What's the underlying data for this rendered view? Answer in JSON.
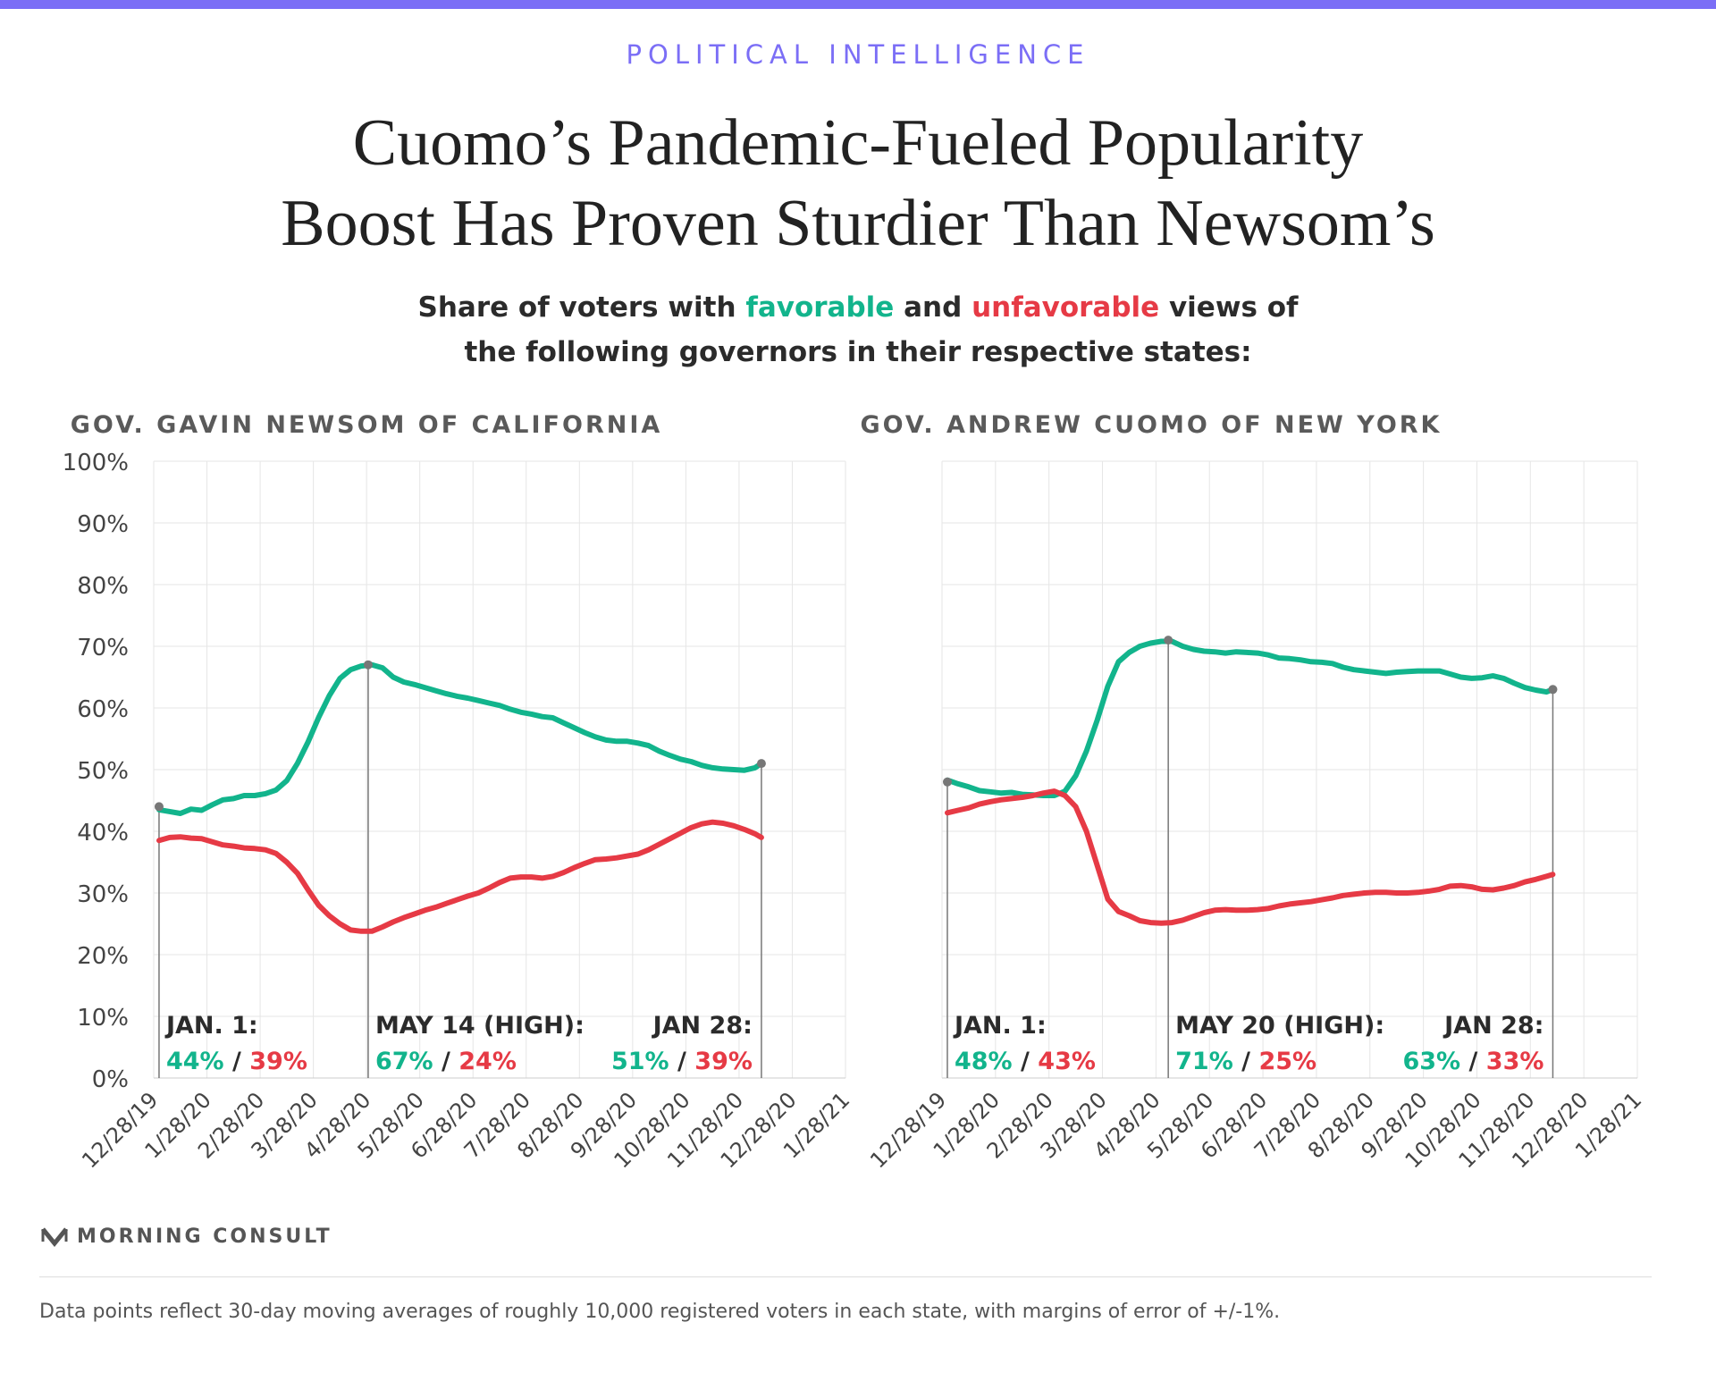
{
  "header": {
    "kicker": "POLITICAL INTELLIGENCE",
    "title_line1": "Cuomo’s Pandemic-Fueled Popularity",
    "title_line2": "Boost Has Proven Sturdier Than Newsom’s",
    "subtitle": {
      "part1": "Share of voters with ",
      "favorable": "favorable",
      "part2": " and ",
      "unfavorable": "unfavorable",
      "part3": " views of",
      "line2": "the following governors in their respective states:"
    }
  },
  "colors": {
    "favorable": "#12b48c",
    "unfavorable": "#e63a45",
    "accent": "#7b6ef6",
    "grid": "#e6e6e6",
    "marker": "#777777"
  },
  "footer": {
    "logo_text": "MORNING CONSULT",
    "logo_icon": "morning-consult-m-icon",
    "footnote": "Data points reflect 30-day moving averages of roughly 10,000 registered voters in each state, with margins of error of +/-1%."
  },
  "chart_data": [
    {
      "type": "line",
      "title": "GOV. GAVIN NEWSOM OF CALIFORNIA",
      "ylim": [
        0,
        100
      ],
      "y_ticks": [
        "0%",
        "10%",
        "20%",
        "30%",
        "40%",
        "50%",
        "60%",
        "70%",
        "80%",
        "90%",
        "100%"
      ],
      "x_tick_labels": [
        "12/28/19",
        "1/28/20",
        "2/28/20",
        "3/28/20",
        "4/28/20",
        "5/28/20",
        "6/28/20",
        "7/28/20",
        "8/28/20",
        "9/28/20",
        "10/28/20",
        "11/28/20",
        "12/28/20",
        "1/28/21"
      ],
      "x_month_range": [
        0,
        13
      ],
      "grid": true,
      "series": [
        {
          "name": "favorable",
          "color": "#12b48c",
          "points": [
            [
              0.1,
              43.5
            ],
            [
              0.3,
              43.2
            ],
            [
              0.5,
              42.9
            ],
            [
              0.7,
              43.6
            ],
            [
              0.9,
              43.4
            ],
            [
              1.1,
              44.3
            ],
            [
              1.3,
              45.1
            ],
            [
              1.5,
              45.3
            ],
            [
              1.7,
              45.8
            ],
            [
              1.9,
              45.8
            ],
            [
              2.1,
              46.1
            ],
            [
              2.3,
              46.7
            ],
            [
              2.5,
              48.2
            ],
            [
              2.7,
              51
            ],
            [
              2.9,
              54.5
            ],
            [
              3.1,
              58.5
            ],
            [
              3.3,
              62
            ],
            [
              3.5,
              64.8
            ],
            [
              3.7,
              66.2
            ],
            [
              3.9,
              66.8
            ],
            [
              4.1,
              67
            ],
            [
              4.3,
              66.5
            ],
            [
              4.5,
              65
            ],
            [
              4.7,
              64.2
            ],
            [
              4.9,
              63.8
            ],
            [
              5.1,
              63.3
            ],
            [
              5.3,
              62.8
            ],
            [
              5.5,
              62.3
            ],
            [
              5.7,
              61.9
            ],
            [
              5.9,
              61.6
            ],
            [
              6.1,
              61.2
            ],
            [
              6.3,
              60.8
            ],
            [
              6.5,
              60.4
            ],
            [
              6.7,
              59.8
            ],
            [
              6.9,
              59.3
            ],
            [
              7.1,
              59
            ],
            [
              7.3,
              58.6
            ],
            [
              7.5,
              58.4
            ],
            [
              7.7,
              57.6
            ],
            [
              7.9,
              56.8
            ],
            [
              8.1,
              56
            ],
            [
              8.3,
              55.3
            ],
            [
              8.5,
              54.8
            ],
            [
              8.7,
              54.6
            ],
            [
              8.9,
              54.6
            ],
            [
              9.1,
              54.3
            ],
            [
              9.3,
              53.9
            ],
            [
              9.5,
              53
            ],
            [
              9.7,
              52.3
            ],
            [
              9.9,
              51.7
            ],
            [
              10.1,
              51.3
            ],
            [
              10.3,
              50.7
            ],
            [
              10.5,
              50.3
            ],
            [
              10.7,
              50.1
            ],
            [
              10.9,
              50
            ],
            [
              11.1,
              49.9
            ],
            [
              11.3,
              50.3
            ],
            [
              11.42,
              51
            ]
          ]
        },
        {
          "name": "unfavorable",
          "color": "#e63a45",
          "points": [
            [
              0.1,
              38.5
            ],
            [
              0.3,
              39
            ],
            [
              0.5,
              39.1
            ],
            [
              0.7,
              38.9
            ],
            [
              0.9,
              38.8
            ],
            [
              1.1,
              38.3
            ],
            [
              1.3,
              37.8
            ],
            [
              1.5,
              37.6
            ],
            [
              1.7,
              37.3
            ],
            [
              1.9,
              37.2
            ],
            [
              2.1,
              37
            ],
            [
              2.3,
              36.4
            ],
            [
              2.5,
              35
            ],
            [
              2.7,
              33.2
            ],
            [
              2.9,
              30.5
            ],
            [
              3.1,
              28
            ],
            [
              3.3,
              26.3
            ],
            [
              3.5,
              25
            ],
            [
              3.7,
              24
            ],
            [
              3.9,
              23.8
            ],
            [
              4.1,
              23.8
            ],
            [
              4.3,
              24.5
            ],
            [
              4.5,
              25.3
            ],
            [
              4.7,
              26
            ],
            [
              4.9,
              26.6
            ],
            [
              5.1,
              27.2
            ],
            [
              5.3,
              27.7
            ],
            [
              5.5,
              28.3
            ],
            [
              5.7,
              28.9
            ],
            [
              5.9,
              29.5
            ],
            [
              6.1,
              30
            ],
            [
              6.3,
              30.8
            ],
            [
              6.5,
              31.7
            ],
            [
              6.7,
              32.4
            ],
            [
              6.9,
              32.6
            ],
            [
              7.1,
              32.6
            ],
            [
              7.3,
              32.4
            ],
            [
              7.5,
              32.7
            ],
            [
              7.7,
              33.3
            ],
            [
              7.9,
              34.1
            ],
            [
              8.1,
              34.8
            ],
            [
              8.3,
              35.4
            ],
            [
              8.5,
              35.5
            ],
            [
              8.7,
              35.7
            ],
            [
              8.9,
              36
            ],
            [
              9.1,
              36.3
            ],
            [
              9.3,
              37
            ],
            [
              9.5,
              37.9
            ],
            [
              9.7,
              38.8
            ],
            [
              9.9,
              39.7
            ],
            [
              10.1,
              40.6
            ],
            [
              10.3,
              41.2
            ],
            [
              10.5,
              41.5
            ],
            [
              10.7,
              41.3
            ],
            [
              10.9,
              40.9
            ],
            [
              11.1,
              40.3
            ],
            [
              11.3,
              39.6
            ],
            [
              11.42,
              39
            ]
          ]
        }
      ],
      "markers": [
        {
          "x": 0.1,
          "fav": 44,
          "unfav": 39,
          "label": "JAN. 1:",
          "fav_text": "44%",
          "sep": "/",
          "unfav_text": "39%",
          "align": "left"
        },
        {
          "x": 4.03,
          "fav": 67,
          "unfav": 24,
          "label": "MAY 14 (HIGH):",
          "fav_text": "67%",
          "sep": "/",
          "unfav_text": "24%",
          "align": "left"
        },
        {
          "x": 11.42,
          "fav": 51,
          "unfav": 39,
          "label": "JAN 28:",
          "fav_text": "51%",
          "sep": "/",
          "unfav_text": "39%",
          "align": "right"
        }
      ]
    },
    {
      "type": "line",
      "title": "GOV. ANDREW CUOMO OF NEW YORK",
      "ylim": [
        0,
        100
      ],
      "y_ticks": [
        "0%",
        "10%",
        "20%",
        "30%",
        "40%",
        "50%",
        "60%",
        "70%",
        "80%",
        "90%",
        "100%"
      ],
      "x_tick_labels": [
        "12/28/19",
        "1/28/20",
        "2/28/20",
        "3/28/20",
        "4/28/20",
        "5/28/20",
        "6/28/20",
        "7/28/20",
        "8/28/20",
        "9/28/20",
        "10/28/20",
        "11/28/20",
        "12/28/20",
        "1/28/21"
      ],
      "x_month_range": [
        0,
        13
      ],
      "grid": true,
      "series": [
        {
          "name": "favorable",
          "color": "#12b48c",
          "points": [
            [
              0.1,
              48.3
            ],
            [
              0.3,
              47.7
            ],
            [
              0.5,
              47.2
            ],
            [
              0.7,
              46.6
            ],
            [
              0.9,
              46.4
            ],
            [
              1.1,
              46.2
            ],
            [
              1.3,
              46.3
            ],
            [
              1.5,
              46
            ],
            [
              1.7,
              45.9
            ],
            [
              1.9,
              45.8
            ],
            [
              2.1,
              45.8
            ],
            [
              2.3,
              46.5
            ],
            [
              2.5,
              49
            ],
            [
              2.7,
              53
            ],
            [
              2.9,
              58
            ],
            [
              3.1,
              63.5
            ],
            [
              3.3,
              67.5
            ],
            [
              3.5,
              69
            ],
            [
              3.7,
              70
            ],
            [
              3.9,
              70.5
            ],
            [
              4.1,
              70.8
            ],
            [
              4.3,
              70.8
            ],
            [
              4.5,
              70
            ],
            [
              4.7,
              69.5
            ],
            [
              4.9,
              69.2
            ],
            [
              5.1,
              69.1
            ],
            [
              5.3,
              68.9
            ],
            [
              5.5,
              69.1
            ],
            [
              5.7,
              69
            ],
            [
              5.9,
              68.9
            ],
            [
              6.1,
              68.6
            ],
            [
              6.3,
              68.1
            ],
            [
              6.5,
              68
            ],
            [
              6.7,
              67.8
            ],
            [
              6.9,
              67.5
            ],
            [
              7.1,
              67.4
            ],
            [
              7.3,
              67.2
            ],
            [
              7.5,
              66.6
            ],
            [
              7.7,
              66.2
            ],
            [
              7.9,
              66
            ],
            [
              8.1,
              65.8
            ],
            [
              8.3,
              65.6
            ],
            [
              8.5,
              65.8
            ],
            [
              8.7,
              65.9
            ],
            [
              8.9,
              66
            ],
            [
              9.1,
              66
            ],
            [
              9.3,
              66
            ],
            [
              9.5,
              65.5
            ],
            [
              9.7,
              65
            ],
            [
              9.9,
              64.8
            ],
            [
              10.1,
              64.9
            ],
            [
              10.3,
              65.2
            ],
            [
              10.5,
              64.8
            ],
            [
              10.7,
              64
            ],
            [
              10.9,
              63.3
            ],
            [
              11.1,
              62.9
            ],
            [
              11.3,
              62.6
            ],
            [
              11.42,
              63
            ]
          ]
        },
        {
          "name": "unfavorable",
          "color": "#e63a45",
          "points": [
            [
              0.1,
              43
            ],
            [
              0.3,
              43.4
            ],
            [
              0.5,
              43.8
            ],
            [
              0.7,
              44.4
            ],
            [
              0.9,
              44.8
            ],
            [
              1.1,
              45.1
            ],
            [
              1.3,
              45.3
            ],
            [
              1.5,
              45.5
            ],
            [
              1.7,
              45.8
            ],
            [
              1.9,
              46.2
            ],
            [
              2.1,
              46.5
            ],
            [
              2.3,
              45.8
            ],
            [
              2.5,
              44
            ],
            [
              2.7,
              40
            ],
            [
              2.9,
              34.5
            ],
            [
              3.1,
              29
            ],
            [
              3.3,
              27
            ],
            [
              3.5,
              26.3
            ],
            [
              3.7,
              25.5
            ],
            [
              3.9,
              25.2
            ],
            [
              4.1,
              25.1
            ],
            [
              4.3,
              25.2
            ],
            [
              4.5,
              25.6
            ],
            [
              4.7,
              26.2
            ],
            [
              4.9,
              26.8
            ],
            [
              5.1,
              27.2
            ],
            [
              5.3,
              27.3
            ],
            [
              5.5,
              27.2
            ],
            [
              5.7,
              27.2
            ],
            [
              5.9,
              27.3
            ],
            [
              6.1,
              27.5
            ],
            [
              6.3,
              27.9
            ],
            [
              6.5,
              28.2
            ],
            [
              6.7,
              28.4
            ],
            [
              6.9,
              28.6
            ],
            [
              7.1,
              28.9
            ],
            [
              7.3,
              29.2
            ],
            [
              7.5,
              29.6
            ],
            [
              7.7,
              29.8
            ],
            [
              7.9,
              30
            ],
            [
              8.1,
              30.1
            ],
            [
              8.3,
              30.1
            ],
            [
              8.5,
              30
            ],
            [
              8.7,
              30
            ],
            [
              8.9,
              30.1
            ],
            [
              9.1,
              30.3
            ],
            [
              9.3,
              30.6
            ],
            [
              9.5,
              31.1
            ],
            [
              9.7,
              31.2
            ],
            [
              9.9,
              31
            ],
            [
              10.1,
              30.6
            ],
            [
              10.3,
              30.5
            ],
            [
              10.5,
              30.8
            ],
            [
              10.7,
              31.2
            ],
            [
              10.9,
              31.8
            ],
            [
              11.1,
              32.2
            ],
            [
              11.3,
              32.7
            ],
            [
              11.42,
              33
            ]
          ]
        }
      ],
      "markers": [
        {
          "x": 0.1,
          "fav": 48,
          "unfav": 43,
          "label": "JAN. 1:",
          "fav_text": "48%",
          "sep": "/",
          "unfav_text": "43%",
          "align": "left"
        },
        {
          "x": 4.23,
          "fav": 71,
          "unfav": 25,
          "label": "MAY 20 (HIGH):",
          "fav_text": "71%",
          "sep": "/",
          "unfav_text": "25%",
          "align": "left"
        },
        {
          "x": 11.42,
          "fav": 63,
          "unfav": 33,
          "label": "JAN 28:",
          "fav_text": "63%",
          "sep": "/",
          "unfav_text": "33%",
          "align": "right"
        }
      ]
    }
  ]
}
